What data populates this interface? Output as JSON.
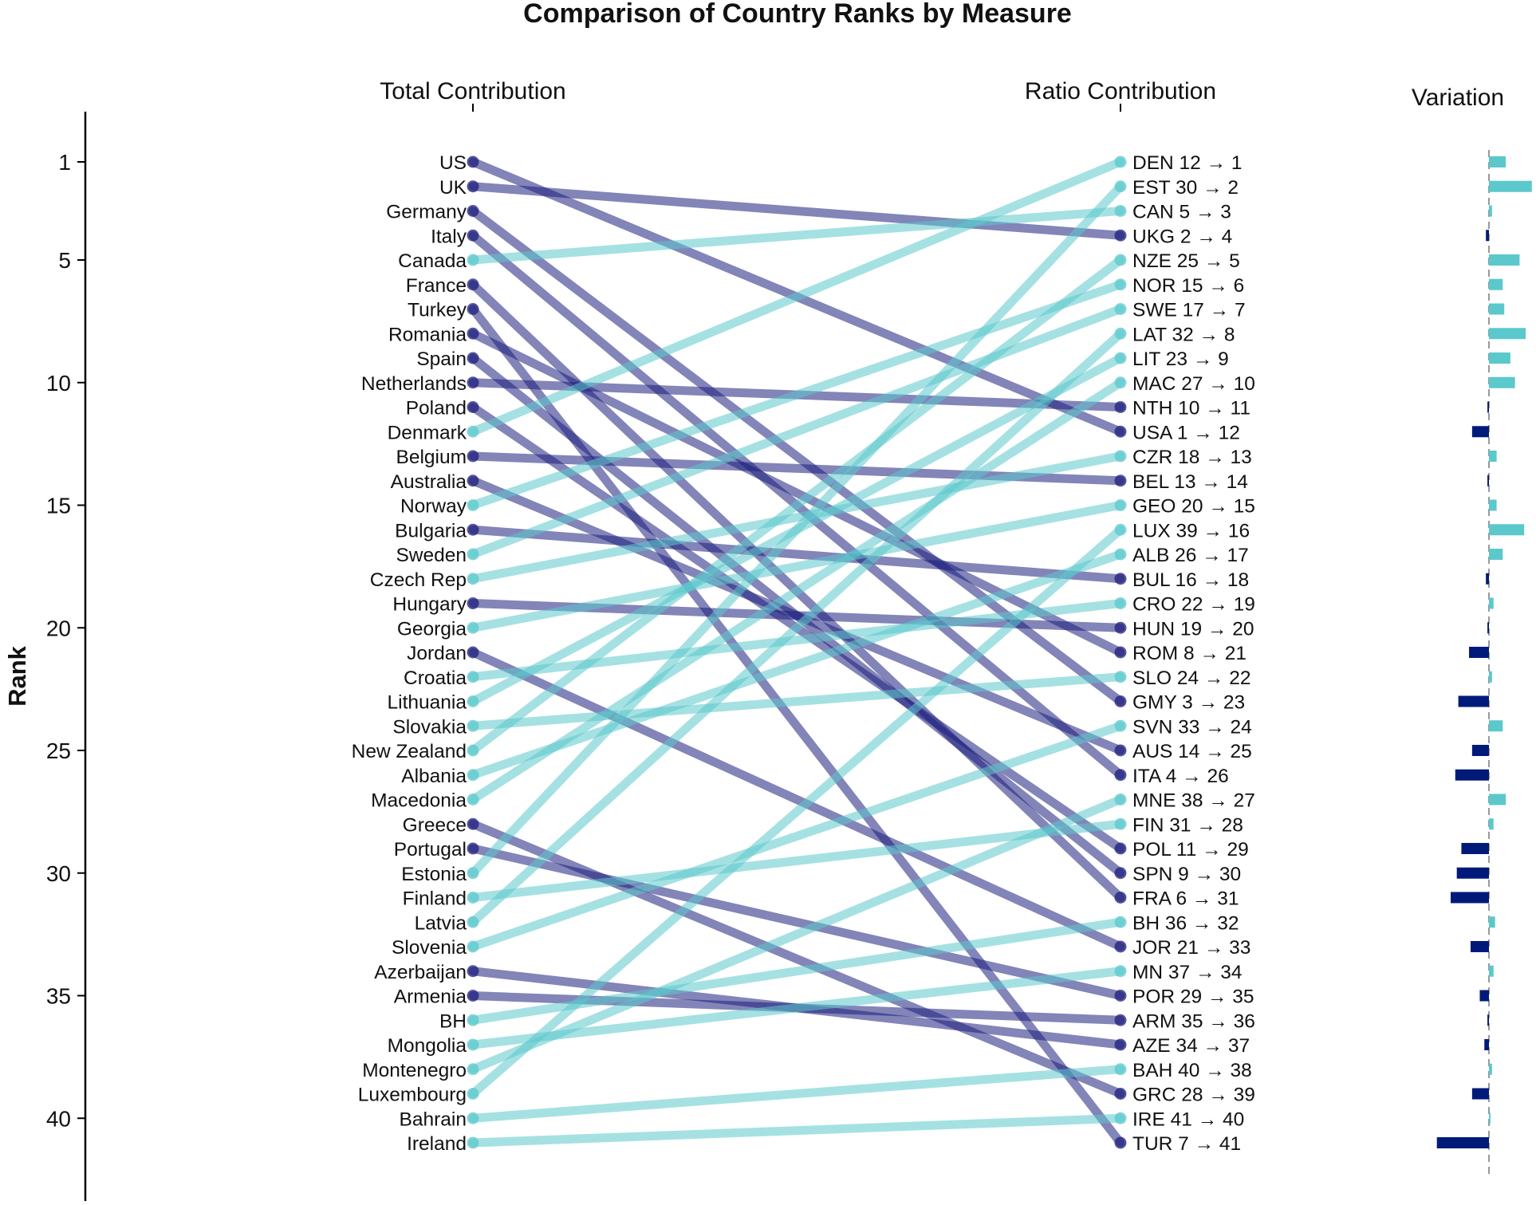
{
  "chart_data": {
    "type": "slope",
    "title": "Comparison of Country Ranks by Measure",
    "left_header": "Total Contribution",
    "right_header": "Ratio Contribution",
    "variation_header": "Variation",
    "ylabel": "Rank",
    "y_ticks": [
      1,
      5,
      10,
      15,
      20,
      25,
      30,
      35,
      40
    ],
    "ylim": [
      -1,
      44
    ],
    "colors": {
      "improved": "#5BC8CC",
      "declined": "#1D1F7E",
      "variation_up": "#5BC8CC",
      "variation_down": "#001A7A",
      "zero_line": "#999999"
    },
    "countries": [
      {
        "name": "US",
        "code": "USA",
        "total_rank": 1,
        "ratio_rank": 12
      },
      {
        "name": "UK",
        "code": "UKG",
        "total_rank": 2,
        "ratio_rank": 4
      },
      {
        "name": "Germany",
        "code": "GMY",
        "total_rank": 3,
        "ratio_rank": 23
      },
      {
        "name": "Italy",
        "code": "ITA",
        "total_rank": 4,
        "ratio_rank": 26
      },
      {
        "name": "Canada",
        "code": "CAN",
        "total_rank": 5,
        "ratio_rank": 3
      },
      {
        "name": "France",
        "code": "FRA",
        "total_rank": 6,
        "ratio_rank": 31
      },
      {
        "name": "Turkey",
        "code": "TUR",
        "total_rank": 7,
        "ratio_rank": 41
      },
      {
        "name": "Romania",
        "code": "ROM",
        "total_rank": 8,
        "ratio_rank": 21
      },
      {
        "name": "Spain",
        "code": "SPN",
        "total_rank": 9,
        "ratio_rank": 30
      },
      {
        "name": "Netherlands",
        "code": "NTH",
        "total_rank": 10,
        "ratio_rank": 11
      },
      {
        "name": "Poland",
        "code": "POL",
        "total_rank": 11,
        "ratio_rank": 29
      },
      {
        "name": "Denmark",
        "code": "DEN",
        "total_rank": 12,
        "ratio_rank": 1
      },
      {
        "name": "Belgium",
        "code": "BEL",
        "total_rank": 13,
        "ratio_rank": 14
      },
      {
        "name": "Australia",
        "code": "AUS",
        "total_rank": 14,
        "ratio_rank": 25
      },
      {
        "name": "Norway",
        "code": "NOR",
        "total_rank": 15,
        "ratio_rank": 6
      },
      {
        "name": "Bulgaria",
        "code": "BUL",
        "total_rank": 16,
        "ratio_rank": 18
      },
      {
        "name": "Sweden",
        "code": "SWE",
        "total_rank": 17,
        "ratio_rank": 7
      },
      {
        "name": "Czech Rep",
        "code": "CZR",
        "total_rank": 18,
        "ratio_rank": 13
      },
      {
        "name": "Hungary",
        "code": "HUN",
        "total_rank": 19,
        "ratio_rank": 20
      },
      {
        "name": "Georgia",
        "code": "GEO",
        "total_rank": 20,
        "ratio_rank": 15
      },
      {
        "name": "Jordan",
        "code": "JOR",
        "total_rank": 21,
        "ratio_rank": 33
      },
      {
        "name": "Croatia",
        "code": "CRO",
        "total_rank": 22,
        "ratio_rank": 19
      },
      {
        "name": "Lithuania",
        "code": "LIT",
        "total_rank": 23,
        "ratio_rank": 9
      },
      {
        "name": "Slovakia",
        "code": "SLO",
        "total_rank": 24,
        "ratio_rank": 22
      },
      {
        "name": "New Zealand",
        "code": "NZE",
        "total_rank": 25,
        "ratio_rank": 5
      },
      {
        "name": "Albania",
        "code": "ALB",
        "total_rank": 26,
        "ratio_rank": 17
      },
      {
        "name": "Macedonia",
        "code": "MAC",
        "total_rank": 27,
        "ratio_rank": 10
      },
      {
        "name": "Greece",
        "code": "GRC",
        "total_rank": 28,
        "ratio_rank": 39
      },
      {
        "name": "Portugal",
        "code": "POR",
        "total_rank": 29,
        "ratio_rank": 35
      },
      {
        "name": "Estonia",
        "code": "EST",
        "total_rank": 30,
        "ratio_rank": 2
      },
      {
        "name": "Finland",
        "code": "FIN",
        "total_rank": 31,
        "ratio_rank": 28
      },
      {
        "name": "Latvia",
        "code": "LAT",
        "total_rank": 32,
        "ratio_rank": 8
      },
      {
        "name": "Slovenia",
        "code": "SVN",
        "total_rank": 33,
        "ratio_rank": 24
      },
      {
        "name": "Azerbaijan",
        "code": "AZE",
        "total_rank": 34,
        "ratio_rank": 37
      },
      {
        "name": "Armenia",
        "code": "ARM",
        "total_rank": 35,
        "ratio_rank": 36
      },
      {
        "name": "BH",
        "code": "BH",
        "total_rank": 36,
        "ratio_rank": 32
      },
      {
        "name": "Mongolia",
        "code": "MN",
        "total_rank": 37,
        "ratio_rank": 34
      },
      {
        "name": "Montenegro",
        "code": "MNE",
        "total_rank": 38,
        "ratio_rank": 27
      },
      {
        "name": "Luxembourg",
        "code": "LUX",
        "total_rank": 39,
        "ratio_rank": 16
      },
      {
        "name": "Bahrain",
        "code": "BAH",
        "total_rank": 40,
        "ratio_rank": 38
      },
      {
        "name": "Ireland",
        "code": "IRE",
        "total_rank": 41,
        "ratio_rank": 40
      }
    ]
  }
}
